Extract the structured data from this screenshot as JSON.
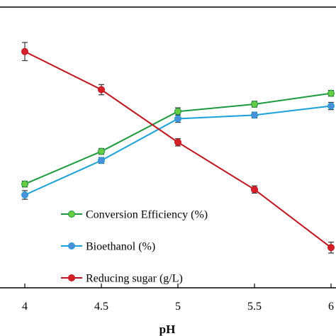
{
  "chart_data": {
    "type": "line",
    "x": [
      4,
      4.5,
      5,
      5.5,
      6
    ],
    "x_tick_labels": [
      "4",
      "4.5",
      "5",
      "5.5",
      "6"
    ],
    "xlabel": "pH",
    "xlim": [
      4,
      6
    ],
    "grid": false,
    "legend_position": "bottom-center",
    "series": [
      {
        "name": "Conversion Efficiency (%)",
        "color": "#1a9a3c",
        "marker_fill": "#66cc44",
        "values": [
          60.5,
          69.5,
          80.5,
          82.5,
          85.5
        ],
        "error": [
          0.8,
          0.8,
          1.0,
          0.8,
          0.8
        ]
      },
      {
        "name": "Bioethanol (%)",
        "color": "#18a0d8",
        "marker_fill": "#4a90d9",
        "values": [
          57.5,
          67.0,
          78.5,
          79.5,
          82.0
        ],
        "error": [
          1.2,
          0.8,
          1.0,
          0.8,
          1.0
        ]
      },
      {
        "name": "Reducing sugar (g/L)",
        "color": "#c0141e",
        "marker_fill": "#d42028",
        "values": [
          97.0,
          86.5,
          72.0,
          59.0,
          43.0
        ],
        "error": [
          2.5,
          1.4,
          1.0,
          1.0,
          1.5
        ]
      }
    ]
  }
}
